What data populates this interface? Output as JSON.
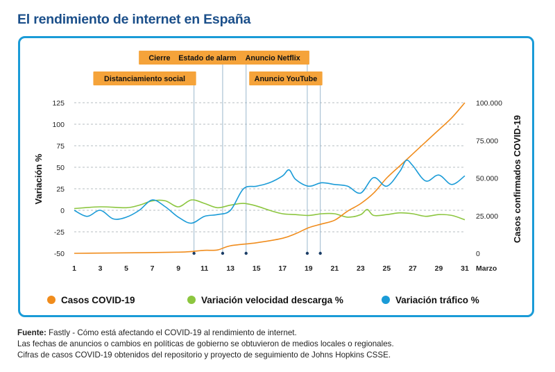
{
  "title": "El rendimiento de internet en España",
  "chart_data": {
    "type": "line",
    "x_unit": "Marzo",
    "x_ticks": [
      1,
      3,
      5,
      7,
      9,
      11,
      13,
      15,
      17,
      19,
      21,
      23,
      25,
      27,
      29,
      31
    ],
    "y_left": {
      "label": "Variación %",
      "ticks": [
        125,
        100,
        75,
        50,
        25,
        0,
        -25,
        -50
      ],
      "ylim": [
        -50,
        125
      ]
    },
    "y_right": {
      "label": "Casos confirmados COVID-19",
      "ticks": [
        "100.000",
        "75.000",
        "50.000",
        "25.000",
        "0"
      ],
      "tick_values": [
        100000,
        75000,
        50000,
        25000,
        0
      ],
      "ylim": [
        0,
        100000
      ]
    },
    "annotations": [
      {
        "label": "Distanciamiento social",
        "day": 10.2,
        "row": 2
      },
      {
        "label": "Cierre de escuelas",
        "day": 12.4,
        "row": 1
      },
      {
        "label": "Estado de alarma",
        "day": 14.2,
        "row": 1
      },
      {
        "label": "Anuncio Netflix",
        "day": 18.9,
        "row": 1
      },
      {
        "label": "Anuncio YouTube",
        "day": 19.9,
        "row": 2
      }
    ],
    "series": [
      {
        "name": "Casos COVID-19",
        "axis": "right",
        "color": "#f08c1c",
        "x": [
          1,
          5,
          9,
          10,
          11,
          12,
          13,
          15,
          17,
          18,
          19,
          20,
          21,
          22,
          23,
          24,
          25,
          26,
          27,
          28,
          29,
          30,
          31
        ],
        "values": [
          0,
          300,
          800,
          1200,
          2000,
          2200,
          5000,
          7000,
          10000,
          13000,
          17000,
          19500,
          22000,
          28000,
          33000,
          40000,
          50000,
          58000,
          66000,
          74000,
          82000,
          90000,
          100000
        ]
      },
      {
        "name": "Variación velocidad descarga %",
        "axis": "left",
        "color": "#8cc63f",
        "x": [
          1,
          3,
          5,
          6,
          7,
          8,
          9,
          10,
          11,
          12,
          13,
          14,
          15,
          16,
          17,
          18,
          19,
          20,
          21,
          22,
          23,
          23.5,
          24,
          25,
          26,
          27,
          28,
          29,
          30,
          31
        ],
        "values": [
          2,
          4,
          3,
          6,
          11,
          11,
          4,
          12,
          8,
          3,
          6,
          8,
          5,
          0,
          -4,
          -5,
          -6,
          -4,
          -4,
          -8,
          -5,
          1,
          -6,
          -5,
          -3,
          -4,
          -7,
          -5,
          -6,
          -11
        ]
      },
      {
        "name": "Variación tráfico %",
        "axis": "left",
        "color": "#1a9bd7",
        "x": [
          1,
          2,
          3,
          4,
          5,
          6,
          7,
          8,
          9,
          10,
          11,
          12,
          13,
          14,
          15,
          16,
          17,
          17.5,
          18,
          19,
          20,
          21,
          22,
          23,
          24,
          25,
          26,
          26.5,
          27,
          28,
          29,
          30,
          31
        ],
        "values": [
          0,
          -7,
          0,
          -10,
          -8,
          0,
          12,
          4,
          -8,
          -15,
          -7,
          -5,
          0,
          25,
          28,
          32,
          40,
          47,
          36,
          28,
          32,
          30,
          28,
          20,
          38,
          28,
          45,
          58,
          52,
          34,
          41,
          30,
          40
        ]
      }
    ],
    "legend": [
      "Casos COVID-19",
      "Variación velocidad descarga %",
      "Variación tráfico %"
    ]
  },
  "footer": {
    "source_label": "Fuente:",
    "source_text": " Fastly - Cómo está afectando el COVID-19 al rendimiento de internet.",
    "line2": "Las fechas de anuncios o cambios en políticas de gobierno se obtuvieron de medios locales o regionales.",
    "line3": "Cifras de casos COVID-19 obtenidos del repositorio y proyecto de seguimiento de Johns Hopkins CSSE."
  }
}
